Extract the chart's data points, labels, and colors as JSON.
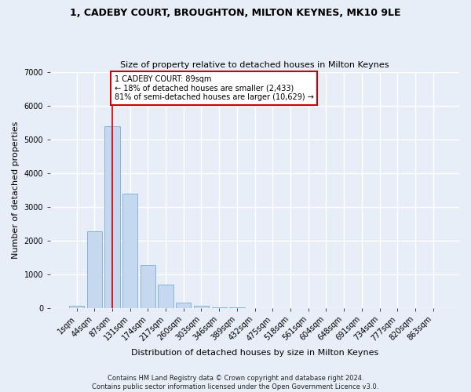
{
  "title1": "1, CADEBY COURT, BROUGHTON, MILTON KEYNES, MK10 9LE",
  "title2": "Size of property relative to detached houses in Milton Keynes",
  "xlabel": "Distribution of detached houses by size in Milton Keynes",
  "ylabel": "Number of detached properties",
  "footer": "Contains HM Land Registry data © Crown copyright and database right 2024.\nContains public sector information licensed under the Open Government Licence v3.0.",
  "bar_labels": [
    "1sqm",
    "44sqm",
    "87sqm",
    "131sqm",
    "174sqm",
    "217sqm",
    "260sqm",
    "303sqm",
    "346sqm",
    "389sqm",
    "432sqm",
    "475sqm",
    "518sqm",
    "561sqm",
    "604sqm",
    "648sqm",
    "691sqm",
    "734sqm",
    "777sqm",
    "820sqm",
    "863sqm"
  ],
  "bar_values": [
    60,
    2270,
    5380,
    3380,
    1280,
    700,
    155,
    65,
    10,
    5,
    0,
    0,
    0,
    0,
    0,
    0,
    0,
    0,
    0,
    0,
    0
  ],
  "bar_color": "#c5d8f0",
  "bar_edge_color": "#7aadd4",
  "annotation_line1": "1 CADEBY COURT: 89sqm",
  "annotation_line2": "← 18% of detached houses are smaller (2,433)",
  "annotation_line3": "81% of semi-detached houses are larger (10,629) →",
  "ylim": [
    0,
    7000
  ],
  "yticks": [
    0,
    1000,
    2000,
    3000,
    4000,
    5000,
    6000,
    7000
  ],
  "bg_color": "#e8eef7",
  "plot_bg_color": "#e8eef7",
  "annotation_box_color": "#ffffff",
  "annotation_box_edge": "#cc0000",
  "vline_color": "#cc0000",
  "vline_pos": 2.0,
  "title1_fontsize": 9,
  "title2_fontsize": 8,
  "xlabel_fontsize": 8,
  "ylabel_fontsize": 8,
  "tick_fontsize": 7,
  "footer_fontsize": 6,
  "grid_color": "#ffffff",
  "grid_linewidth": 1.0
}
